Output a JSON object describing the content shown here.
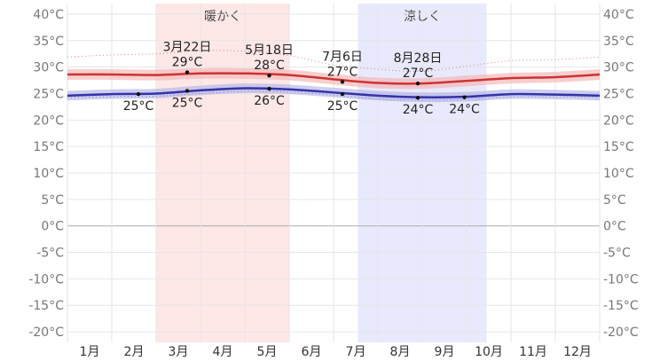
{
  "chart_data": {
    "type": "line",
    "x_unit": "month",
    "x_range": [
      0,
      12
    ],
    "y_unit": "°C",
    "ylim": [
      -22,
      42
    ],
    "y_ticks": [
      40,
      35,
      30,
      25,
      20,
      15,
      10,
      5,
      0,
      -5,
      -10,
      -15,
      -20
    ],
    "months": [
      "1月",
      "2月",
      "3月",
      "4月",
      "5月",
      "6月",
      "7月",
      "8月",
      "9月",
      "10月",
      "11月",
      "12月"
    ],
    "seasons": [
      {
        "label": "暖かく",
        "start": 2.0,
        "end": 5.0,
        "color": "#fde7e7"
      },
      {
        "label": "涼しく",
        "start": 6.55,
        "end": 9.45,
        "color": "#e9e9fd"
      }
    ],
    "series": [
      {
        "key": "high",
        "color": "#cc3333",
        "band_color": "#f4b3b3",
        "x": [
          0,
          1,
          2,
          3,
          4,
          5,
          6,
          7,
          8,
          9,
          10,
          11,
          12
        ],
        "values": [
          28.6,
          28.6,
          28.5,
          28.8,
          28.8,
          28.5,
          27.7,
          27.0,
          26.9,
          27.4,
          27.9,
          28.1,
          28.6
        ],
        "band_width": 1.0
      },
      {
        "key": "low",
        "color": "#3333aa",
        "band_color": "#b3b3e6",
        "x": [
          0,
          1,
          2,
          3,
          4,
          5,
          6,
          7,
          8,
          9,
          10,
          11,
          12
        ],
        "values": [
          24.6,
          24.9,
          25.0,
          25.6,
          26.0,
          25.8,
          25.2,
          24.6,
          24.3,
          24.4,
          24.9,
          24.8,
          24.6
        ],
        "band_width": 0.9
      },
      {
        "key": "upper-extreme",
        "color": "#d98080",
        "dotted": true,
        "x": [
          0,
          1,
          2,
          3,
          4,
          5,
          6,
          7,
          8,
          9,
          10,
          11,
          12
        ],
        "values": [
          31.9,
          32.3,
          32.5,
          33.1,
          33.0,
          32.2,
          30.4,
          29.6,
          29.2,
          30.2,
          31.2,
          31.4,
          31.9
        ]
      },
      {
        "key": "lower-extreme",
        "color": "#8080cc",
        "dotted": true,
        "x": [
          0,
          1,
          2,
          3,
          4,
          5,
          6,
          7,
          8,
          9,
          10,
          11,
          12
        ],
        "values": [
          24.2,
          24.4,
          24.5,
          25.0,
          25.4,
          25.3,
          24.7,
          24.0,
          23.8,
          23.9,
          24.4,
          24.4,
          24.2
        ]
      }
    ],
    "annotations": [
      {
        "x": 2.7,
        "y": 29,
        "pos": "above",
        "date": "3月22日",
        "temp": "29°C"
      },
      {
        "x": 4.55,
        "y": 28.4,
        "pos": "above",
        "date": "5月18日",
        "temp": "28°C"
      },
      {
        "x": 6.2,
        "y": 27.2,
        "pos": "above",
        "date": "7月6日",
        "temp": "27°C"
      },
      {
        "x": 7.9,
        "y": 26.9,
        "pos": "above",
        "date": "8月28日",
        "temp": "27°C"
      },
      {
        "x": 1.6,
        "y": 24.9,
        "pos": "below",
        "date": "",
        "temp": "25°C"
      },
      {
        "x": 2.7,
        "y": 25.5,
        "pos": "below",
        "date": "",
        "temp": "25°C"
      },
      {
        "x": 4.55,
        "y": 25.9,
        "pos": "below",
        "date": "",
        "temp": "26°C"
      },
      {
        "x": 6.2,
        "y": 24.9,
        "pos": "below",
        "date": "",
        "temp": "25°C"
      },
      {
        "x": 7.9,
        "y": 24.2,
        "pos": "below",
        "date": "",
        "temp": "24°C"
      },
      {
        "x": 8.95,
        "y": 24.3,
        "pos": "below",
        "date": "",
        "temp": "24°C"
      }
    ]
  }
}
